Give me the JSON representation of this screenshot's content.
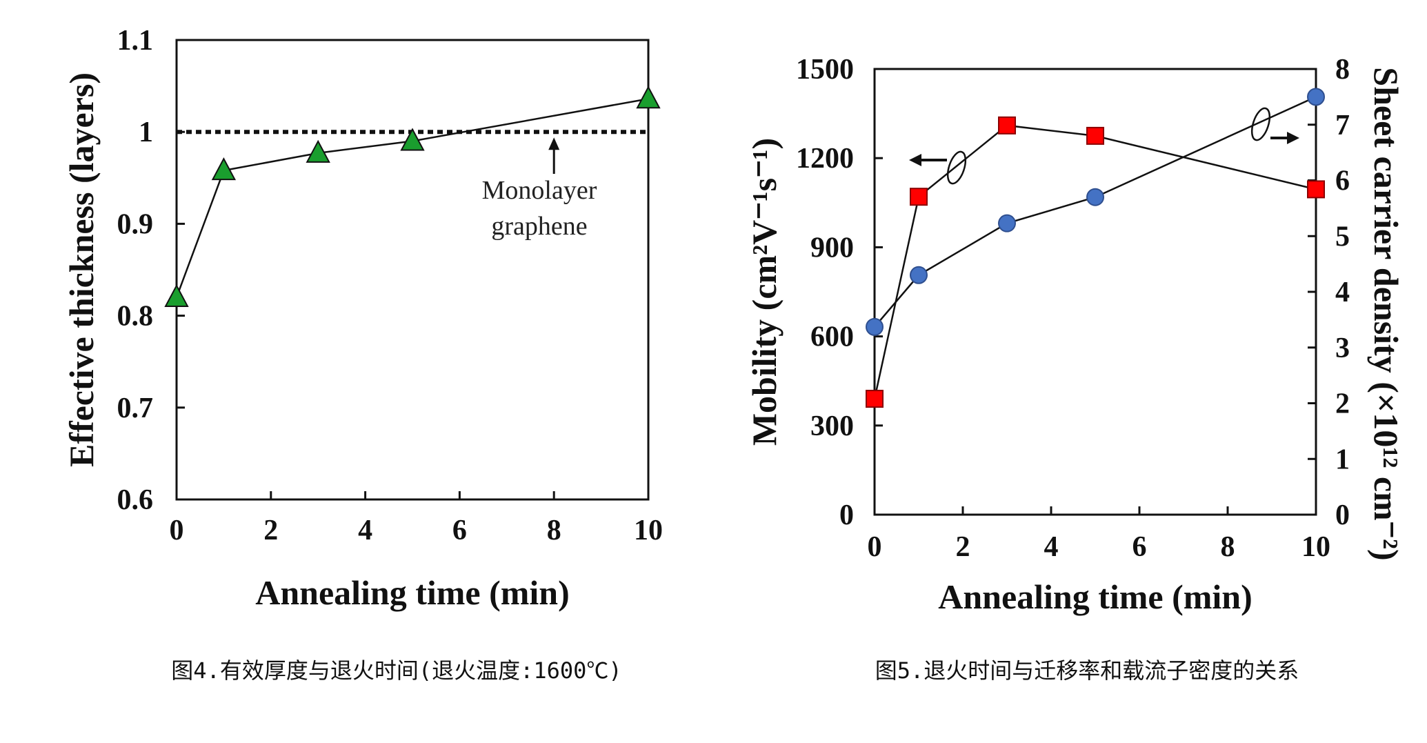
{
  "chart_data": [
    {
      "type": "line",
      "title": "",
      "xlabel": "Annealing time (min)",
      "ylabel": "Effective thickness (layers)",
      "xlim": [
        0,
        10
      ],
      "ylim": [
        0.6,
        1.1
      ],
      "x_ticks": [
        "0",
        "2",
        "4",
        "6",
        "8",
        "10"
      ],
      "y_ticks": [
        "0.6",
        "0.7",
        "0.8",
        "0.9",
        "1",
        "1.1"
      ],
      "series": [
        {
          "name": "Effective thickness",
          "marker": "triangle",
          "color": "#1a9e2e",
          "x": [
            0,
            1,
            3,
            5,
            10
          ],
          "values": [
            0.82,
            0.958,
            0.977,
            0.99,
            1.036
          ]
        }
      ],
      "reference_line": {
        "y": 1.0,
        "style": "dotted"
      },
      "annotation": {
        "line1": "Monolayer",
        "line2": "graphene",
        "arrow_to_x": 8
      },
      "caption": "图4.有效厚度与退火时间(退火温度:1600℃)"
    },
    {
      "type": "line",
      "title": "",
      "xlabel": "Annealing time (min)",
      "ylabel": "Mobility (cm²V⁻¹s⁻¹)",
      "y2label": "Sheet carrier density (×10¹² cm⁻²)",
      "xlim": [
        0,
        10
      ],
      "ylim": [
        0,
        1500
      ],
      "y2lim": [
        0,
        8
      ],
      "x_ticks": [
        "0",
        "2",
        "4",
        "6",
        "8",
        "10"
      ],
      "y_ticks": [
        "0",
        "300",
        "600",
        "900",
        "1200",
        "1500"
      ],
      "y2_ticks": [
        "0",
        "1",
        "2",
        "3",
        "4",
        "5",
        "6",
        "7",
        "8"
      ],
      "series": [
        {
          "name": "Mobility",
          "axis": "left",
          "marker": "square",
          "color": "#ff0000",
          "x": [
            0,
            1,
            3,
            5,
            10
          ],
          "values": [
            390,
            1070,
            1310,
            1275,
            1095
          ]
        },
        {
          "name": "Sheet carrier density",
          "axis": "right",
          "marker": "circle",
          "color": "#4472c4",
          "x": [
            0,
            1,
            3,
            5,
            10
          ],
          "values": [
            3.37,
            4.3,
            5.23,
            5.7,
            7.5
          ]
        }
      ],
      "caption": "图5.退火时间与迁移率和载流子密度的关系"
    }
  ]
}
